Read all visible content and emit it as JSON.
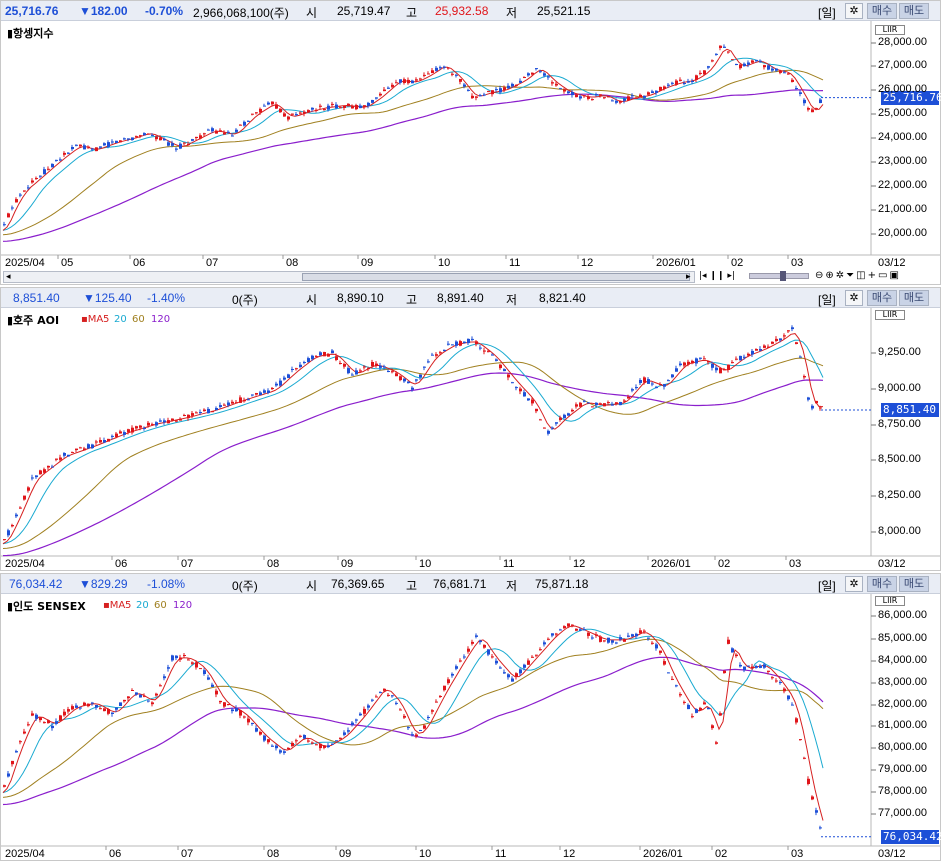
{
  "colors": {
    "up": "#e0151a",
    "down": "#1d4fd7",
    "ma5": "#d62020",
    "ma20": "#1aaad1",
    "ma60": "#a08020",
    "ma120": "#8a1ecc"
  },
  "panels": [
    {
      "key": "hsi",
      "header": {
        "price": "25,716.76",
        "change": "▼182.00",
        "pct": "-0.70%",
        "volume": "2,966,068,100(주)",
        "open_label": "시",
        "open": "25,719.47",
        "high_label": "고",
        "high": "25,932.58",
        "low_label": "저",
        "low": "25,521.15"
      },
      "period_button": "[일]",
      "settings_icon": "gear-icon",
      "buy_label": "매수",
      "sell_label": "매도",
      "title": "▮항셍지수",
      "ma_labels": [],
      "current_label": "25,716.76",
      "y_ticks": [
        "28,000.00",
        "27,000.00",
        "26,000.00",
        "25,000.00",
        "24,000.00",
        "23,000.00",
        "22,000.00",
        "21,000.00",
        "20,000.00"
      ],
      "x_ticks": [
        "2025/04",
        "05",
        "06",
        "07",
        "08",
        "09",
        "10",
        "11",
        "12",
        "2026/01",
        "02",
        "03"
      ],
      "x_end": "03/12",
      "toolbar_icons": [
        "first-icon",
        "pause-icon",
        "last-icon",
        "zoom-out-icon",
        "zoom-in-icon",
        "settings-icon",
        "funnel-icon",
        "split-icon",
        "add-icon",
        "window-icon",
        "window-icon"
      ],
      "range": [
        19500,
        28200
      ],
      "chart_data": {
        "type": "candlestick",
        "start": 21000,
        "points": [
          [
            0,
            20400
          ],
          [
            8,
            21200
          ],
          [
            20,
            22000
          ],
          [
            35,
            22500
          ],
          [
            55,
            23200
          ],
          [
            75,
            23800
          ],
          [
            90,
            23600
          ],
          [
            110,
            23900
          ],
          [
            130,
            24100
          ],
          [
            145,
            24300
          ],
          [
            160,
            24000
          ],
          [
            175,
            23700
          ],
          [
            190,
            24000
          ],
          [
            210,
            24400
          ],
          [
            230,
            24200
          ],
          [
            250,
            25000
          ],
          [
            270,
            25500
          ],
          [
            285,
            24900
          ],
          [
            300,
            25100
          ],
          [
            320,
            25300
          ],
          [
            340,
            25400
          ],
          [
            360,
            25300
          ],
          [
            375,
            25700
          ],
          [
            395,
            26400
          ],
          [
            410,
            26300
          ],
          [
            425,
            26600
          ],
          [
            440,
            27000
          ],
          [
            455,
            26500
          ],
          [
            470,
            25700
          ],
          [
            485,
            25900
          ],
          [
            500,
            26000
          ],
          [
            520,
            26400
          ],
          [
            535,
            26900
          ],
          [
            550,
            26300
          ],
          [
            565,
            25900
          ],
          [
            585,
            25700
          ],
          [
            600,
            25800
          ],
          [
            615,
            25500
          ],
          [
            630,
            25700
          ],
          [
            645,
            25800
          ],
          [
            660,
            26100
          ],
          [
            675,
            26300
          ],
          [
            690,
            26400
          ],
          [
            705,
            26800
          ],
          [
            720,
            27800
          ],
          [
            735,
            26900
          ],
          [
            755,
            27200
          ],
          [
            770,
            26800
          ],
          [
            785,
            26700
          ],
          [
            800,
            25700
          ],
          [
            808,
            25100
          ],
          [
            815,
            25300
          ],
          [
            820,
            25700
          ]
        ]
      }
    },
    {
      "key": "aord",
      "header": {
        "price": "8,851.40",
        "change": "▼125.40",
        "pct": "-1.40%",
        "volume": "0(주)",
        "open_label": "시",
        "open": "8,890.10",
        "high_label": "고",
        "high": "8,891.40",
        "low_label": "저",
        "low": "8,821.40"
      },
      "period_button": "[일]",
      "settings_icon": "gear-icon",
      "buy_label": "매수",
      "sell_label": "매도",
      "title": "▮호주 AOI",
      "ma_labels": [
        {
          "text": "▪MA",
          "color": "#d62020"
        },
        {
          "text": "5",
          "color": "#d62020"
        },
        {
          "text": "20",
          "color": "#1aaad1"
        },
        {
          "text": "60",
          "color": "#a08020"
        },
        {
          "text": "120",
          "color": "#8a1ecc"
        }
      ],
      "current_label": "8,851.40",
      "y_ticks": [
        "9,250.00",
        "9,000.00",
        "8,750.00",
        "8,500.00",
        "8,250.00",
        "8,000.00"
      ],
      "x_ticks": [
        "2025/04",
        "06",
        "07",
        "08",
        "09",
        "10",
        "11",
        "12",
        "2026/01",
        "02",
        "03"
      ],
      "x_end": "03/12",
      "range": [
        7900,
        9450
      ],
      "chart_data": {
        "type": "candlestick",
        "start": 8000,
        "points": [
          [
            0,
            7980
          ],
          [
            10,
            8100
          ],
          [
            30,
            8400
          ],
          [
            60,
            8550
          ],
          [
            90,
            8620
          ],
          [
            120,
            8700
          ],
          [
            150,
            8760
          ],
          [
            180,
            8800
          ],
          [
            210,
            8850
          ],
          [
            240,
            8920
          ],
          [
            270,
            8980
          ],
          [
            290,
            9100
          ],
          [
            310,
            9200
          ],
          [
            330,
            9220
          ],
          [
            350,
            9080
          ],
          [
            370,
            9150
          ],
          [
            390,
            9100
          ],
          [
            410,
            9000
          ],
          [
            430,
            9200
          ],
          [
            450,
            9280
          ],
          [
            470,
            9300
          ],
          [
            490,
            9200
          ],
          [
            510,
            9040
          ],
          [
            530,
            8900
          ],
          [
            545,
            8700
          ],
          [
            560,
            8800
          ],
          [
            580,
            8900
          ],
          [
            600,
            8880
          ],
          [
            620,
            8900
          ],
          [
            640,
            9050
          ],
          [
            660,
            9000
          ],
          [
            680,
            9150
          ],
          [
            700,
            9180
          ],
          [
            720,
            9100
          ],
          [
            740,
            9200
          ],
          [
            760,
            9250
          ],
          [
            780,
            9320
          ],
          [
            790,
            9380
          ],
          [
            800,
            9150
          ],
          [
            808,
            8850
          ],
          [
            815,
            8900
          ],
          [
            820,
            8851
          ]
        ]
      }
    },
    {
      "key": "sensex",
      "header": {
        "price": "76,034.42",
        "change": "▼829.29",
        "pct": "-1.08%",
        "volume": "0(주)",
        "open_label": "시",
        "open": "76,369.65",
        "high_label": "고",
        "high": "76,681.71",
        "low_label": "저",
        "low": "75,871.18"
      },
      "period_button": "[일]",
      "settings_icon": "gear-icon",
      "buy_label": "매수",
      "sell_label": "매도",
      "title": "▮인도 SENSEX",
      "ma_labels": [
        {
          "text": "▪MA",
          "color": "#d62020"
        },
        {
          "text": "5",
          "color": "#d62020"
        },
        {
          "text": "20",
          "color": "#1aaad1"
        },
        {
          "text": "60",
          "color": "#a08020"
        },
        {
          "text": "120",
          "color": "#8a1ecc"
        }
      ],
      "current_label": "76,034.42",
      "y_ticks": [
        "86,000.00",
        "85,000.00",
        "84,000.00",
        "83,000.00",
        "82,000.00",
        "81,000.00",
        "80,000.00",
        "79,000.00",
        "78,000.00",
        "77,000.00"
      ],
      "x_ticks": [
        "2025/04",
        "06",
        "07",
        "08",
        "09",
        "10",
        "11",
        "12",
        "2026/01",
        "02",
        "03"
      ],
      "x_end": "03/12",
      "range": [
        75800,
        86400
      ],
      "chart_data": {
        "type": "candlestick",
        "start": 79000,
        "points": [
          [
            0,
            78000
          ],
          [
            15,
            80000
          ],
          [
            30,
            81500
          ],
          [
            50,
            81000
          ],
          [
            70,
            81800
          ],
          [
            90,
            82000
          ],
          [
            110,
            81500
          ],
          [
            130,
            82500
          ],
          [
            150,
            82000
          ],
          [
            170,
            84000
          ],
          [
            185,
            84000
          ],
          [
            200,
            83500
          ],
          [
            220,
            82000
          ],
          [
            240,
            81500
          ],
          [
            260,
            80500
          ],
          [
            280,
            79800
          ],
          [
            300,
            80500
          ],
          [
            320,
            80000
          ],
          [
            340,
            80500
          ],
          [
            360,
            81500
          ],
          [
            380,
            82700
          ],
          [
            395,
            82000
          ],
          [
            410,
            80500
          ],
          [
            420,
            80800
          ],
          [
            440,
            82500
          ],
          [
            460,
            84000
          ],
          [
            475,
            85000
          ],
          [
            490,
            84000
          ],
          [
            510,
            83000
          ],
          [
            530,
            84000
          ],
          [
            550,
            85000
          ],
          [
            565,
            85500
          ],
          [
            580,
            85200
          ],
          [
            600,
            84800
          ],
          [
            620,
            84800
          ],
          [
            640,
            85200
          ],
          [
            655,
            84500
          ],
          [
            670,
            83000
          ],
          [
            690,
            81500
          ],
          [
            705,
            82000
          ],
          [
            715,
            80000
          ],
          [
            725,
            84800
          ],
          [
            740,
            83500
          ],
          [
            760,
            83700
          ],
          [
            775,
            83000
          ],
          [
            790,
            82000
          ],
          [
            800,
            80000
          ],
          [
            808,
            78000
          ],
          [
            815,
            77000
          ],
          [
            820,
            76034
          ]
        ]
      }
    }
  ]
}
